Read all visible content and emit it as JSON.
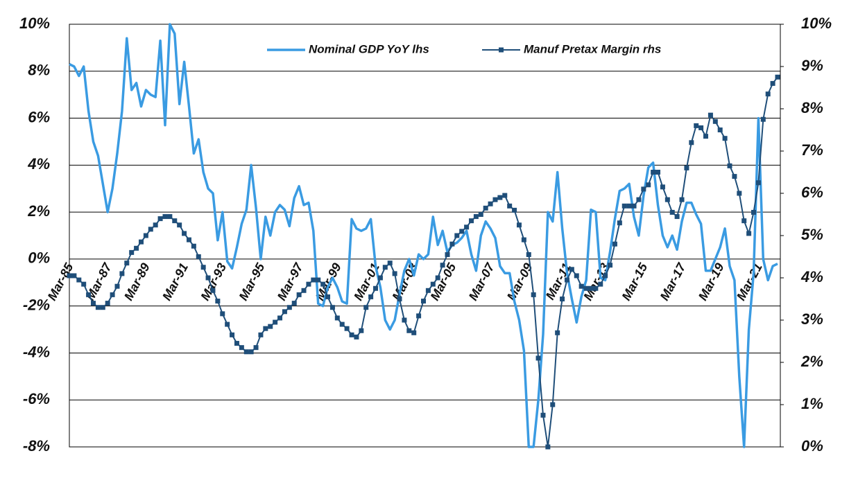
{
  "chart_data": {
    "type": "line",
    "categories": [
      "Mar-85",
      null,
      null,
      null,
      null,
      null,
      null,
      null,
      "Mar-87",
      null,
      null,
      null,
      null,
      null,
      null,
      null,
      "Mar-89",
      null,
      null,
      null,
      null,
      null,
      null,
      null,
      "Mar-91",
      null,
      null,
      null,
      null,
      null,
      null,
      null,
      "Mar-93",
      null,
      null,
      null,
      null,
      null,
      null,
      null,
      "Mar-95",
      null,
      null,
      null,
      null,
      null,
      null,
      null,
      "Mar-97",
      null,
      null,
      null,
      null,
      null,
      null,
      null,
      "Mar-99",
      null,
      null,
      null,
      null,
      null,
      null,
      null,
      "Mar-01",
      null,
      null,
      null,
      null,
      null,
      null,
      null,
      "Mar-03",
      null,
      null,
      null,
      null,
      null,
      null,
      null,
      "Mar-05",
      null,
      null,
      null,
      null,
      null,
      null,
      null,
      "Mar-07",
      null,
      null,
      null,
      null,
      null,
      null,
      null,
      "Mar-09",
      null,
      null,
      null,
      null,
      null,
      null,
      null,
      "Mar-11",
      null,
      null,
      null,
      null,
      null,
      null,
      null,
      "Mar-13",
      null,
      null,
      null,
      null,
      null,
      null,
      null,
      "Mar-15",
      null,
      null,
      null,
      null,
      null,
      null,
      null,
      "Mar-17",
      null,
      null,
      null,
      null,
      null,
      null,
      null,
      "Mar-19",
      null,
      null,
      null,
      null,
      null,
      null,
      null,
      "Mar-21",
      null,
      null,
      null,
      null
    ],
    "series": [
      {
        "name": "Nominal GDP YoY lhs",
        "color": "#3a9be2",
        "axis": "y",
        "values": [
          8.3,
          8.2,
          7.8,
          8.2,
          6.3,
          5.0,
          4.4,
          3.2,
          2.0,
          3.0,
          4.5,
          6.3,
          9.4,
          7.2,
          7.5,
          6.5,
          7.2,
          7.0,
          6.9,
          9.3,
          5.7,
          10.0,
          9.6,
          6.6,
          8.4,
          6.5,
          4.5,
          5.1,
          3.7,
          3.0,
          2.8,
          0.8,
          2.0,
          -0.1,
          -0.4,
          0.5,
          1.5,
          2.1,
          4.0,
          2.2,
          0.0,
          1.8,
          1.0,
          2.0,
          2.3,
          2.1,
          1.4,
          2.6,
          3.1,
          2.3,
          2.4,
          1.2,
          -1.9,
          -2.0,
          -1.2,
          -0.8,
          -1.2,
          -1.8,
          -1.9,
          1.7,
          1.3,
          1.2,
          1.3,
          1.7,
          -0.3,
          -1.2,
          -2.6,
          -3.0,
          -2.6,
          -1.5,
          -0.5,
          0.0,
          -0.7,
          0.2,
          0.0,
          0.2,
          1.8,
          0.6,
          1.2,
          0.3,
          0.6,
          0.7,
          0.9,
          1.2,
          0.2,
          -0.5,
          1.0,
          1.6,
          1.3,
          0.9,
          -0.3,
          -0.6,
          -0.6,
          -1.8,
          -2.6,
          -3.9,
          -8.0,
          -8.0,
          -6.0,
          -3.2,
          2.0,
          1.6,
          3.7,
          1.3,
          -0.6,
          -1.7,
          -2.7,
          -1.6,
          -0.9,
          2.1,
          2.0,
          -0.8,
          -0.9,
          0.3,
          1.7,
          2.9,
          3.0,
          3.2,
          1.8,
          1.0,
          2.7,
          3.9,
          4.1,
          2.3,
          1.0,
          0.5,
          1.0,
          0.4,
          1.6,
          2.4,
          2.4,
          1.9,
          1.5,
          -0.5,
          -0.5,
          0.0,
          0.5,
          1.3,
          -0.3,
          -0.9,
          -5.0,
          -8.0,
          -3.0,
          -0.6,
          6.0,
          0.0,
          -0.9,
          -0.3,
          -0.2
        ]
      },
      {
        "name": "Manuf Pretax Margin rhs",
        "color": "#1f4e79",
        "axis": "y2",
        "values": [
          4.05,
          4.05,
          3.95,
          3.85,
          3.6,
          3.4,
          3.3,
          3.3,
          3.4,
          3.6,
          3.8,
          4.1,
          4.35,
          4.6,
          4.7,
          4.85,
          5.0,
          5.15,
          5.25,
          5.4,
          5.45,
          5.45,
          5.35,
          5.25,
          5.05,
          4.9,
          4.75,
          4.5,
          4.25,
          4.0,
          3.7,
          3.45,
          3.15,
          2.9,
          2.65,
          2.45,
          2.35,
          2.25,
          2.25,
          2.35,
          2.65,
          2.8,
          2.85,
          2.95,
          3.05,
          3.2,
          3.3,
          3.4,
          3.6,
          3.7,
          3.85,
          3.95,
          3.95,
          3.85,
          3.55,
          3.3,
          3.05,
          2.9,
          2.8,
          2.65,
          2.6,
          2.75,
          3.3,
          3.55,
          3.75,
          4.0,
          4.25,
          4.35,
          4.1,
          3.5,
          3.0,
          2.75,
          2.7,
          3.1,
          3.45,
          3.7,
          3.85,
          4.0,
          4.3,
          4.55,
          4.8,
          5.0,
          5.1,
          5.2,
          5.35,
          5.45,
          5.5,
          5.65,
          5.75,
          5.85,
          5.9,
          5.95,
          5.7,
          5.6,
          5.25,
          4.9,
          4.55,
          3.6,
          2.1,
          0.75,
          0.0,
          1.0,
          2.7,
          3.5,
          3.95,
          4.2,
          4.05,
          3.8,
          3.75,
          3.75,
          3.75,
          3.85,
          4.05,
          4.3,
          4.8,
          5.3,
          5.7,
          5.7,
          5.7,
          5.85,
          6.1,
          6.2,
          6.5,
          6.5,
          6.15,
          5.85,
          5.55,
          5.45,
          5.85,
          6.6,
          7.2,
          7.6,
          7.55,
          7.35,
          7.85,
          7.7,
          7.5,
          7.3,
          6.65,
          6.4,
          6.0,
          5.35,
          5.05,
          5.55,
          6.25,
          7.75,
          8.35,
          8.6,
          8.75
        ]
      }
    ],
    "ylim": [
      -8,
      10
    ],
    "yticks": [
      {
        "value": -8,
        "label": "-8%"
      },
      {
        "value": -6,
        "label": "-6%"
      },
      {
        "value": -4,
        "label": "-4%"
      },
      {
        "value": -2,
        "label": "-2%"
      },
      {
        "value": 0,
        "label": "0%"
      },
      {
        "value": 2,
        "label": "2%"
      },
      {
        "value": 4,
        "label": "4%"
      },
      {
        "value": 6,
        "label": "6%"
      },
      {
        "value": 8,
        "label": "8%"
      },
      {
        "value": 10,
        "label": "10%"
      }
    ],
    "y2lim": [
      0,
      10
    ],
    "y2ticks": [
      {
        "value": 0,
        "label": "0%"
      },
      {
        "value": 1,
        "label": "1%"
      },
      {
        "value": 2,
        "label": "2%"
      },
      {
        "value": 3,
        "label": "3%"
      },
      {
        "value": 4,
        "label": "4%"
      },
      {
        "value": 5,
        "label": "5%"
      },
      {
        "value": 6,
        "label": "6%"
      },
      {
        "value": 7,
        "label": "7%"
      },
      {
        "value": 8,
        "label": "8%"
      },
      {
        "value": 9,
        "label": "9%"
      },
      {
        "value": 10,
        "label": "10%"
      }
    ],
    "grid": true
  }
}
